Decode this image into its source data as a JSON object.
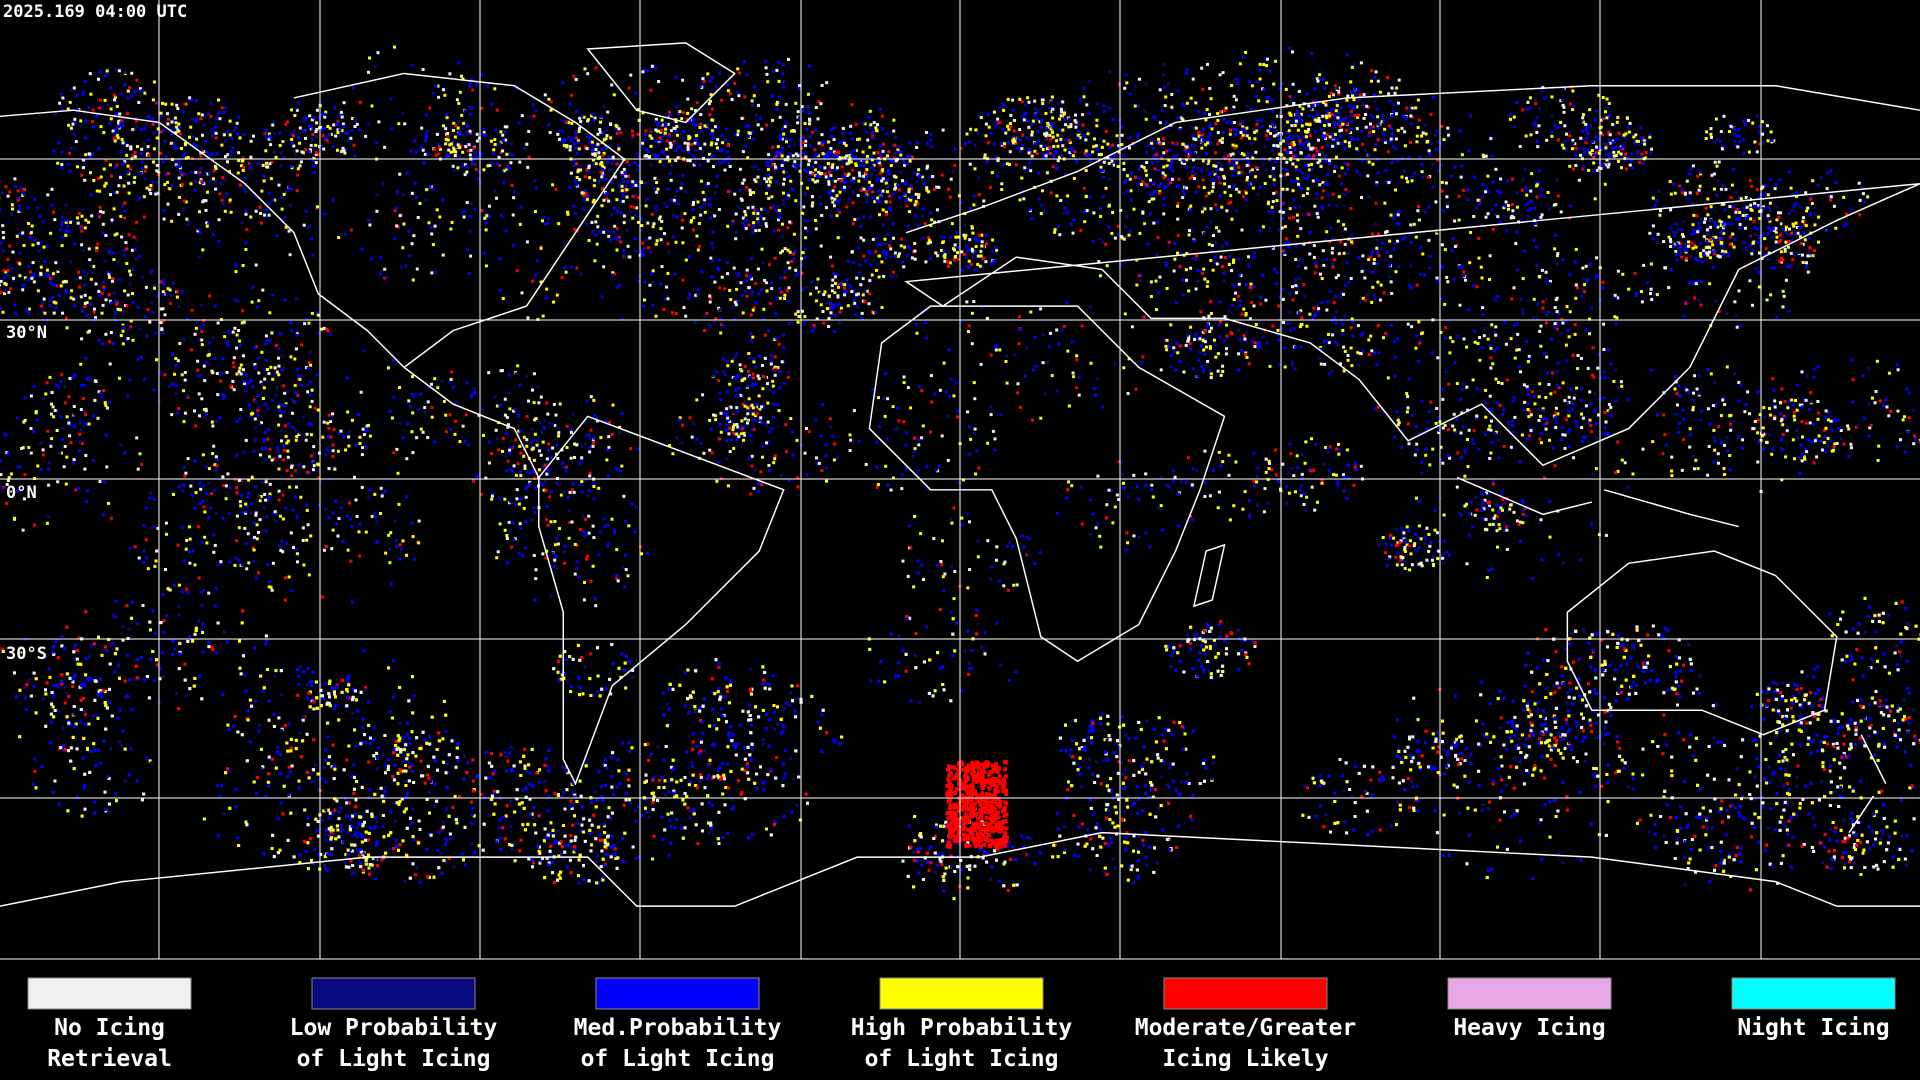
{
  "timestamp": "2025.169 04:00 UTC",
  "lat_labels": [
    "30°N",
    "0°N",
    "30°S"
  ],
  "legend": [
    {
      "color": "#f0f0f0",
      "label": [
        "No Icing",
        "Retrieval"
      ]
    },
    {
      "color": "#0a0a80",
      "label": [
        "Low Probability",
        "of Light Icing"
      ]
    },
    {
      "color": "#0000ff",
      "label": [
        "Med.Probability",
        "of Light Icing"
      ]
    },
    {
      "color": "#ffff00",
      "label": [
        "High Probability",
        "of Light Icing"
      ]
    },
    {
      "color": "#ff0000",
      "label": [
        "Moderate/Greater",
        "Icing Likely"
      ]
    },
    {
      "color": "#e8a8e8",
      "label": [
        "Heavy Icing"
      ]
    },
    {
      "color": "#00ffff",
      "label": [
        "Night Icing"
      ]
    }
  ]
}
